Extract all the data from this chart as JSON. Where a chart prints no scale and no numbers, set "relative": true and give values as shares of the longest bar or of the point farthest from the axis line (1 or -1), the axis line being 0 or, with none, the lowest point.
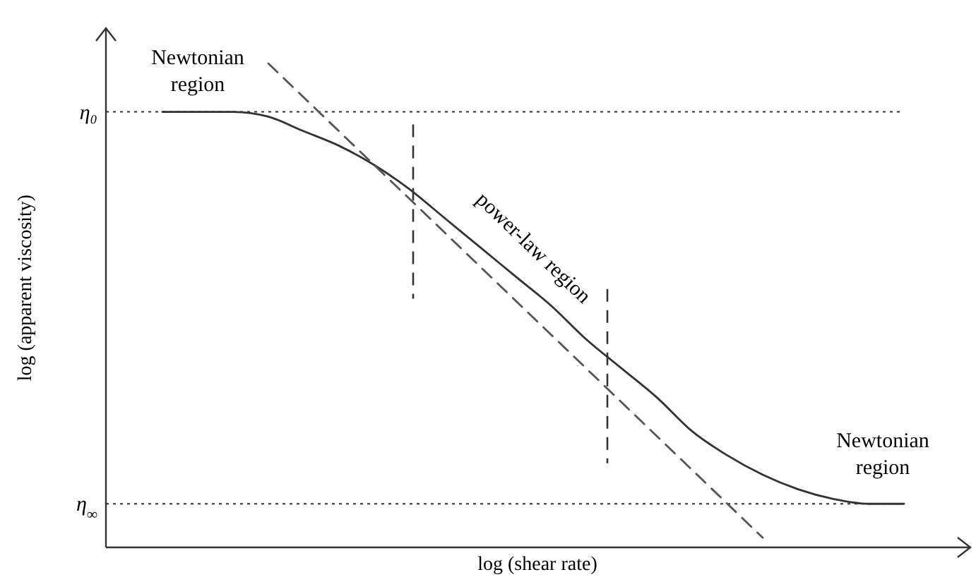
{
  "chart_data": {
    "type": "line",
    "relative": true,
    "xlabel": "log (shear rate)",
    "ylabel": "log (apparent viscosity)",
    "categories": [
      null,
      null,
      null,
      null,
      null,
      null,
      null,
      null,
      null,
      null,
      null,
      null,
      null,
      null,
      null,
      null,
      null,
      null,
      null,
      null,
      null,
      null
    ],
    "series": [
      {
        "color": "#333333",
        "line_style": "solid",
        "values": [
          0.9,
          0.9,
          0.9,
          0.89,
          0.86,
          0.83,
          0.79,
          0.74,
          0.68,
          0.62,
          0.56,
          0.5,
          0.43,
          0.37,
          0.31,
          0.24,
          0.19,
          0.15,
          0.12,
          0.1,
          0.09,
          0.09
        ]
      },
      {
        "color": "#555555",
        "line_style": "dashed",
        "values": [
          null,
          null,
          null,
          1.0,
          0.93,
          0.86,
          0.79,
          0.72,
          0.65,
          0.58,
          0.51,
          0.44,
          0.37,
          0.3,
          0.23,
          0.16,
          0.09,
          0.02,
          null,
          null,
          null,
          null
        ]
      }
    ],
    "ref_lines": [
      {
        "axis": "y",
        "value": 0.9,
        "label": "η₀",
        "line_style": "dotted",
        "color": "#333333"
      },
      {
        "axis": "y",
        "value": 0.09,
        "label": "η$_{∞}$",
        "line_style": "dotted",
        "color": "#333333"
      }
    ],
    "annotations": [
      "Newtonian region",
      "power-law region",
      "Newtonian region"
    ]
  }
}
